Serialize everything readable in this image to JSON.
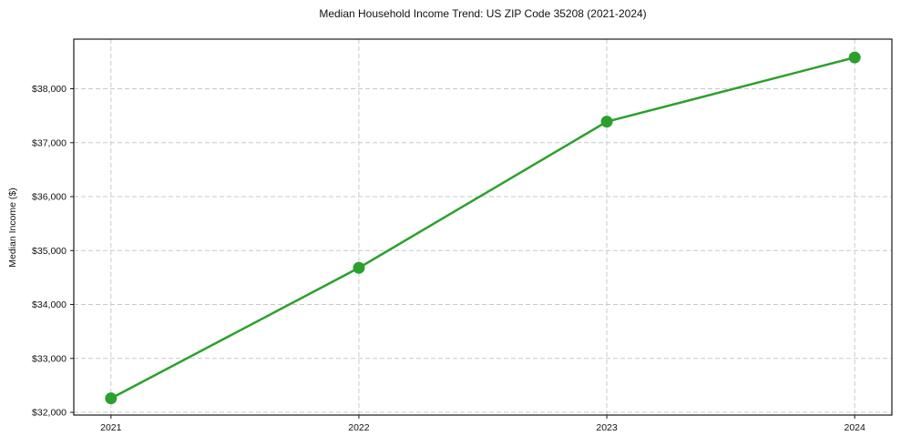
{
  "chart_data": {
    "type": "line",
    "title": "Median Household Income Trend: US ZIP Code 35208 (2021-2024)",
    "xlabel": "",
    "ylabel": "Median Income ($)",
    "x": [
      2021,
      2022,
      2023,
      2024
    ],
    "categories": [
      "2021",
      "2022",
      "2023",
      "2024"
    ],
    "series": [
      {
        "name": "Median Household Income",
        "values": [
          32260,
          34680,
          37390,
          38580
        ]
      }
    ],
    "xlim": [
      2020.85,
      2024.15
    ],
    "ylim": [
      31950,
      38920
    ],
    "yticks": [
      32000,
      33000,
      34000,
      35000,
      36000,
      37000,
      38000
    ],
    "ytick_labels": [
      "$32,000",
      "$33,000",
      "$34,000",
      "$35,000",
      "$36,000",
      "$37,000",
      "$38,000"
    ],
    "xticks": [
      2021,
      2022,
      2023,
      2024
    ],
    "xtick_labels": [
      "2021",
      "2022",
      "2023",
      "2024"
    ],
    "grid": true,
    "grid_style": "dashed",
    "legend": "none",
    "colors": {
      "line": "#2ca02c",
      "marker": "#2ca02c",
      "grid": "#c9c9c9",
      "spine": "#1a1a1a",
      "text": "#111111",
      "background": "#ffffff"
    },
    "marker": "circle",
    "marker_radius": 6.5,
    "line_width": 2.5
  }
}
